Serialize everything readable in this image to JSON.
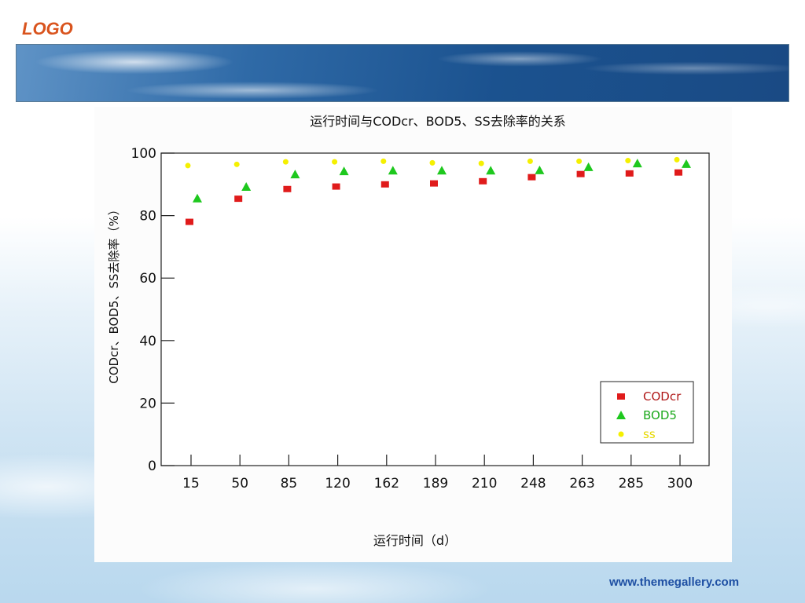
{
  "header": {
    "logo_text": "LOGO"
  },
  "footer": {
    "url_text": "www.themegallery.com"
  },
  "colors": {
    "logo": "#d9541e",
    "footer_link": "#1e4fa3"
  },
  "chart_data": {
    "type": "scatter",
    "title": "运行时间与CODcr、BOD5、SS去除率的关系",
    "xlabel": "运行时间（d）",
    "ylabel": "CODcr、BOD5、SS去除率（%）",
    "x_tick_labels": [
      "15",
      "50",
      "85",
      "120",
      "162",
      "189",
      "210",
      "248",
      "263",
      "285",
      "300"
    ],
    "y_ticks": [
      0,
      20,
      40,
      60,
      80,
      100
    ],
    "ylim": [
      0,
      100
    ],
    "grid": false,
    "legend_position": "bottom-right",
    "series": [
      {
        "name": "CODcr",
        "marker": "square",
        "color": "#e01b1b",
        "label_color": "#b01818",
        "points": [
          {
            "x": 15,
            "y": 78
          },
          {
            "x": 50,
            "y": 85.4
          },
          {
            "x": 85,
            "y": 88.5
          },
          {
            "x": 120,
            "y": 89.3
          },
          {
            "x": 162,
            "y": 90
          },
          {
            "x": 189,
            "y": 90.3
          },
          {
            "x": 210,
            "y": 91
          },
          {
            "x": 248,
            "y": 92.3
          },
          {
            "x": 263,
            "y": 93.3
          },
          {
            "x": 285,
            "y": 93.5
          },
          {
            "x": 300,
            "y": 93.8
          }
        ]
      },
      {
        "name": "BOD5",
        "marker": "triangle",
        "color": "#1ec81e",
        "label_color": "#1aa81a",
        "points": [
          {
            "x": 15,
            "y": 85.5
          },
          {
            "x": 50,
            "y": 89.2
          },
          {
            "x": 85,
            "y": 93.2
          },
          {
            "x": 120,
            "y": 94.2
          },
          {
            "x": 162,
            "y": 94.4
          },
          {
            "x": 189,
            "y": 94.4
          },
          {
            "x": 210,
            "y": 94.4
          },
          {
            "x": 248,
            "y": 94.5
          },
          {
            "x": 263,
            "y": 95.5
          },
          {
            "x": 285,
            "y": 96.7
          },
          {
            "x": 300,
            "y": 96.5
          }
        ]
      },
      {
        "name": "ss",
        "marker": "circle",
        "color": "#f5f000",
        "label_color": "#e6d800",
        "points": [
          {
            "x": 15,
            "y": 96
          },
          {
            "x": 50,
            "y": 96.4
          },
          {
            "x": 85,
            "y": 97.2
          },
          {
            "x": 120,
            "y": 97.2
          },
          {
            "x": 162,
            "y": 97.4
          },
          {
            "x": 189,
            "y": 96.9
          },
          {
            "x": 210,
            "y": 96.7
          },
          {
            "x": 248,
            "y": 97.4
          },
          {
            "x": 263,
            "y": 97.4
          },
          {
            "x": 285,
            "y": 97.6
          },
          {
            "x": 300,
            "y": 97.9
          }
        ]
      }
    ]
  }
}
